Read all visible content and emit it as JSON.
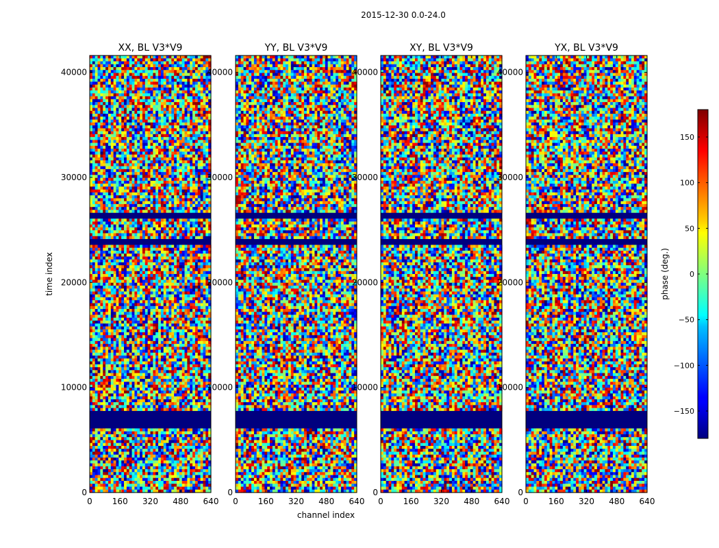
{
  "chart_data": {
    "type": "heatmap",
    "suptitle": "2015-12-30 0.0-24.0",
    "panels": [
      {
        "title": "XX, BL V3*V9"
      },
      {
        "title": "YY, BL V3*V9"
      },
      {
        "title": "XY, BL V3*V9"
      },
      {
        "title": "YX, BL V3*V9"
      }
    ],
    "xlabel": "channel index",
    "ylabel": "time index",
    "x_range": [
      0,
      640
    ],
    "y_range": [
      0,
      41600
    ],
    "x_ticks": [
      "0",
      "160",
      "320",
      "480",
      "640"
    ],
    "x_tick_values": [
      0,
      160,
      320,
      480,
      640
    ],
    "y_ticks": [
      "0",
      "10000",
      "20000",
      "30000",
      "40000"
    ],
    "y_tick_values": [
      0,
      10000,
      20000,
      30000,
      40000
    ],
    "colorbar": {
      "label": "phase (deg.)",
      "range": [
        -180,
        180
      ],
      "colormap": "jet",
      "ticks": [
        "−150",
        "−100",
        "−50",
        "0",
        "50",
        "100",
        "150"
      ],
      "tick_values": [
        -150,
        -100,
        -50,
        0,
        50,
        100,
        150
      ]
    },
    "flagged_time_ranges": [
      [
        7800,
        6100
      ],
      [
        26200,
        26700
      ],
      [
        23600,
        24100
      ]
    ]
  }
}
